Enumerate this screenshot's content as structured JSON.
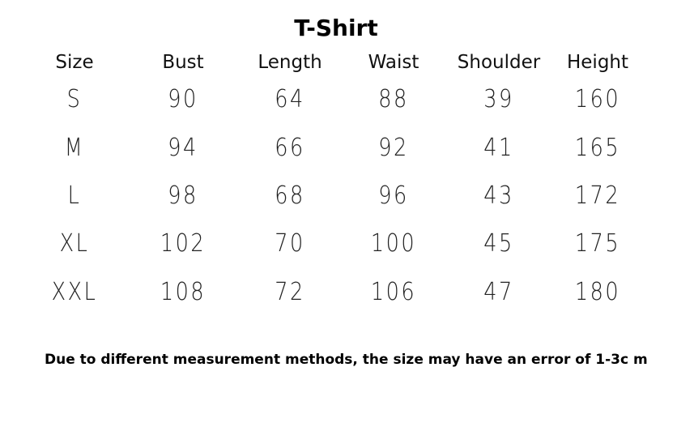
{
  "title": "T-Shirt",
  "table": {
    "headers": [
      "Size",
      "Bust",
      "Length",
      "Waist",
      "Shoulder",
      "Height"
    ],
    "rows": [
      [
        "S",
        "90",
        "64",
        "88",
        "39",
        "160"
      ],
      [
        "M",
        "94",
        "66",
        "92",
        "41",
        "165"
      ],
      [
        "L",
        "98",
        "68",
        "96",
        "43",
        "172"
      ],
      [
        "XL",
        "102",
        "70",
        "100",
        "45",
        "175"
      ],
      [
        "XXL",
        "108",
        "72",
        "106",
        "47",
        "180"
      ]
    ]
  },
  "note": "Due to different measurement methods, the size may have an error of 1-3c m"
}
